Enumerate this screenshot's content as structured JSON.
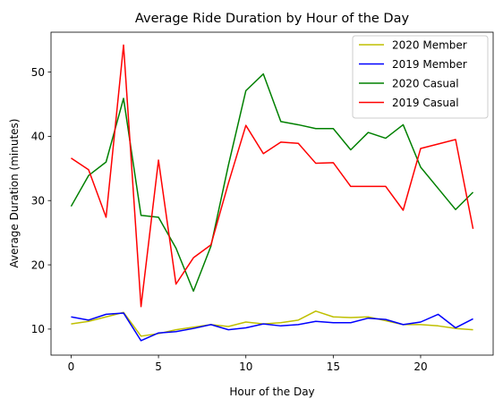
{
  "chart_data": {
    "type": "line",
    "title": "Average Ride Duration by Hour of the Day",
    "xlabel": "Hour of the Day",
    "ylabel": "Average Duration (minutes)",
    "xlim": [
      -1.15,
      24.15
    ],
    "ylim": [
      5.95,
      56.2
    ],
    "xticks": [
      0,
      5,
      10,
      15,
      20
    ],
    "yticks": [
      10,
      20,
      30,
      40,
      50
    ],
    "grid": false,
    "legend_position": "top-right",
    "x": [
      0,
      1,
      2,
      3,
      4,
      5,
      6,
      7,
      8,
      9,
      10,
      11,
      12,
      13,
      14,
      15,
      16,
      17,
      18,
      19,
      20,
      21,
      22,
      23
    ],
    "series": [
      {
        "name": "2020 Member",
        "color": "#bfbf00",
        "values": [
          10.8,
          11.2,
          11.9,
          12.6,
          8.9,
          9.3,
          9.9,
          10.3,
          10.7,
          10.4,
          11.1,
          10.8,
          11.0,
          11.4,
          12.8,
          11.9,
          11.8,
          11.9,
          11.3,
          10.7,
          10.7,
          10.5,
          10.1,
          9.9
        ]
      },
      {
        "name": "2019 Member",
        "color": "#0000ff",
        "values": [
          11.9,
          11.4,
          12.3,
          12.5,
          8.2,
          9.4,
          9.6,
          10.1,
          10.7,
          9.9,
          10.2,
          10.8,
          10.5,
          10.7,
          11.2,
          11.0,
          11.0,
          11.7,
          11.5,
          10.7,
          11.1,
          12.3,
          10.2,
          11.6
        ]
      },
      {
        "name": "2020 Casual",
        "color": "#008000",
        "values": [
          29.1,
          33.9,
          36.0,
          45.9,
          27.7,
          27.4,
          22.6,
          15.9,
          22.9,
          35.5,
          47.1,
          49.7,
          42.3,
          41.8,
          41.2,
          41.2,
          37.9,
          40.6,
          39.7,
          41.8,
          35.2,
          31.9,
          28.6,
          31.3
        ]
      },
      {
        "name": "2019 Casual",
        "color": "#ff0000",
        "values": [
          36.6,
          34.8,
          27.4,
          54.2,
          13.5,
          36.3,
          17.0,
          21.1,
          23.1,
          32.7,
          41.7,
          37.3,
          39.1,
          38.9,
          35.8,
          35.9,
          32.2,
          32.2,
          32.2,
          28.5,
          38.1,
          38.8,
          39.5,
          25.6
        ]
      }
    ]
  }
}
